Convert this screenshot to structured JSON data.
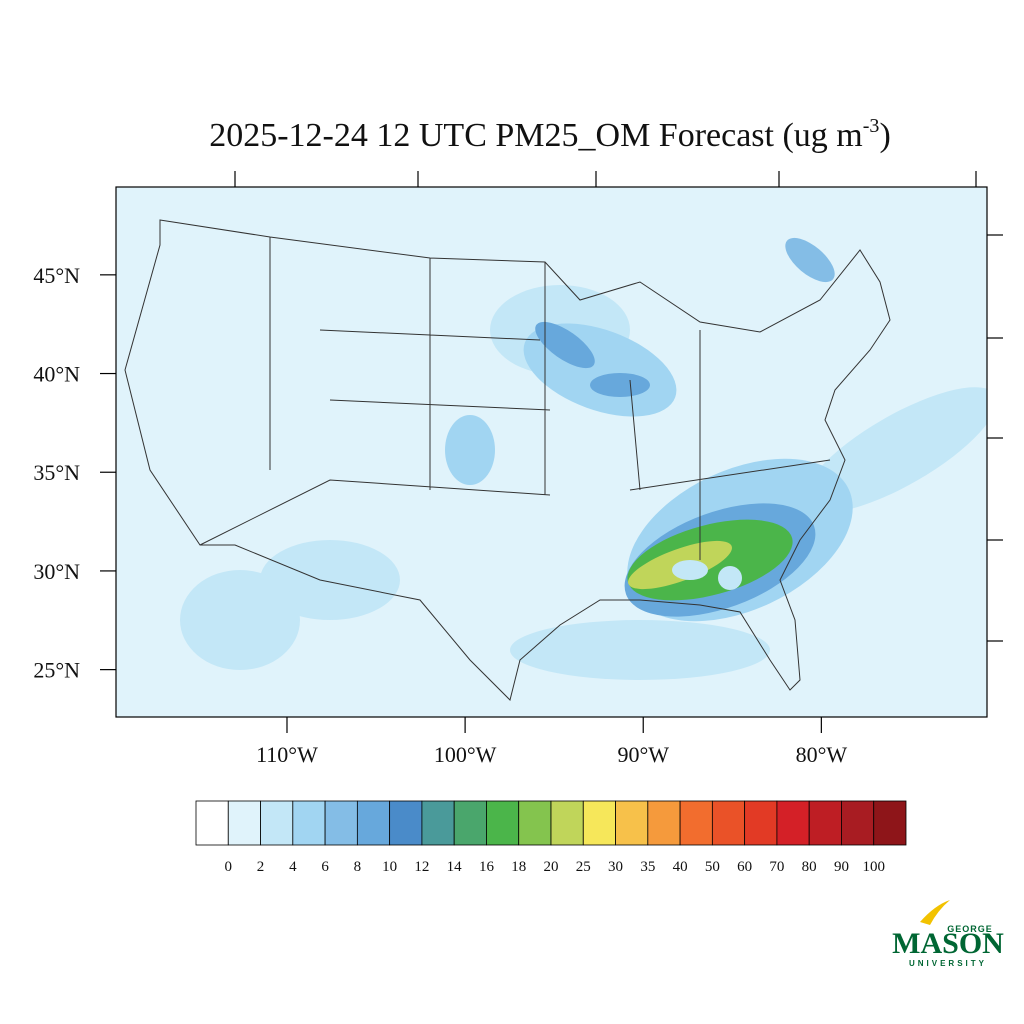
{
  "map": {
    "title": {
      "main": "2025-12-24 12 UTC PM25_OM Forecast (ug m",
      "superscript": "-3",
      "close": ")"
    },
    "ylim": [
      22.6,
      49.45
    ],
    "xlim": [
      -119.6,
      -70.7
    ],
    "yticks": [
      {
        "value": 45,
        "label": "45°N"
      },
      {
        "value": 40,
        "label": "40°N"
      },
      {
        "value": 35,
        "label": "35°N"
      },
      {
        "value": 30,
        "label": "30°N"
      },
      {
        "value": 25,
        "label": "25°N"
      }
    ],
    "xticks": [
      {
        "value": -110,
        "label": "110°W"
      },
      {
        "value": -100,
        "label": "100°W"
      },
      {
        "value": -90,
        "label": "90°W"
      },
      {
        "value": -80,
        "label": "80°W"
      }
    ],
    "legend": {
      "levels": [
        "0",
        "2",
        "4",
        "6",
        "8",
        "10",
        "12",
        "14",
        "16",
        "18",
        "20",
        "25",
        "30",
        "35",
        "40",
        "50",
        "60",
        "70",
        "80",
        "90",
        "100"
      ],
      "colors": [
        "#ffffff",
        "#e0f3fb",
        "#c3e7f7",
        "#a1d5f2",
        "#84bde6",
        "#67a8dc",
        "#4a8bc9",
        "#4a9a9a",
        "#4aa66c",
        "#4bb54a",
        "#84c44e",
        "#c0d55a",
        "#f6e75a",
        "#f7c14a",
        "#f59a3c",
        "#f26d2e",
        "#ea5228",
        "#e23a25",
        "#d42027",
        "#be1e24",
        "#a81c22",
        "#8e1519"
      ]
    },
    "logo": {
      "top": "GEORGE",
      "main": "MASON",
      "bottom": "UNIVERSITY"
    }
  }
}
